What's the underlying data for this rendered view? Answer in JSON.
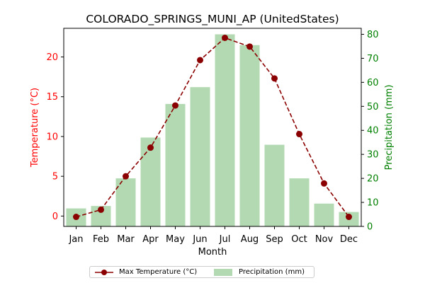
{
  "chart_data": {
    "type": "bar+line",
    "title": "COLORADO_SPRINGS_MUNI_AP (UnitedStates)",
    "xlabel": "Month",
    "categories": [
      "Jan",
      "Feb",
      "Mar",
      "Apr",
      "May",
      "Jun",
      "Jul",
      "Aug",
      "Sep",
      "Oct",
      "Nov",
      "Dec"
    ],
    "y_left": {
      "label": "Temperature (°C)",
      "color": "#ff0000",
      "ylim": [
        -1.3,
        23.6
      ],
      "ticks": [
        0,
        5,
        10,
        15,
        20
      ]
    },
    "y_right": {
      "label": "Precipitation (mm)",
      "color": "#008000",
      "ylim": [
        0,
        82.5
      ],
      "ticks": [
        0,
        10,
        20,
        30,
        40,
        50,
        60,
        70,
        80
      ]
    },
    "series": [
      {
        "name": "Max Temperature (°C)",
        "type": "line",
        "axis": "left",
        "color": "#8b0000",
        "marker": "circle",
        "linestyle": "dashed",
        "values": [
          -0.1,
          0.8,
          5.0,
          8.6,
          13.9,
          19.6,
          22.4,
          21.3,
          17.3,
          10.3,
          4.1,
          -0.1
        ]
      },
      {
        "name": "Precipitation (mm)",
        "type": "bar",
        "axis": "right",
        "color": "#b2d9b2",
        "values": [
          7.5,
          8.5,
          20.0,
          37.0,
          51.0,
          58.0,
          80.0,
          75.5,
          34.0,
          20.0,
          9.5,
          6.0
        ]
      }
    ],
    "legend": {
      "placement": "bottom-center",
      "columns": 2
    }
  }
}
